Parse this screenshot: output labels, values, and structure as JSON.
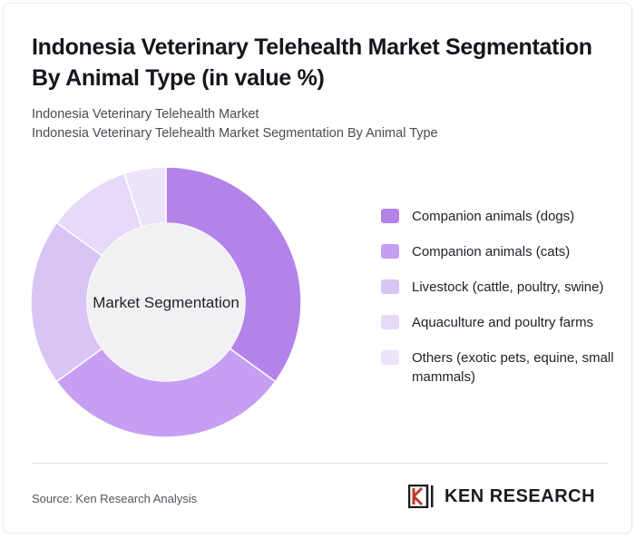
{
  "header": {
    "title": "Indonesia Veterinary Telehealth Market Segmentation By Animal Type (in value %)",
    "subtitle_line1": "Indonesia Veterinary Telehealth Market",
    "subtitle_line2": "Indonesia Veterinary Telehealth Market Segmentation By Animal Type"
  },
  "chart_data": {
    "type": "pie",
    "variant": "donut",
    "center_label": "Market Segmentation",
    "categories": [
      "Companion animals (dogs)",
      "Companion animals (cats)",
      "Livestock (cattle, poultry, swine)",
      "Aquaculture and poultry farms",
      "Others (exotic pets, equine, small mammals)"
    ],
    "values": [
      35,
      30,
      20,
      10,
      5
    ],
    "colors": [
      "#b383ea",
      "#c69ef2",
      "#d9c4f6",
      "#e6d9f9",
      "#ede3fb"
    ],
    "legend_position": "right"
  },
  "legend_items": [
    {
      "label": "Companion animals (dogs)",
      "color": "#b383ea"
    },
    {
      "label": "Companion animals (cats)",
      "color": "#c69ef2"
    },
    {
      "label": "Livestock (cattle, poultry, swine)",
      "color": "#d9c4f6"
    },
    {
      "label": "Aquaculture and poultry farms",
      "color": "#e6d9f9"
    },
    {
      "label": "Others (exotic pets, equine, small mammals)",
      "color": "#ede3fb"
    }
  ],
  "footer": {
    "source": "Source: Ken Research Analysis",
    "logo_text": "KEN RESEARCH"
  }
}
